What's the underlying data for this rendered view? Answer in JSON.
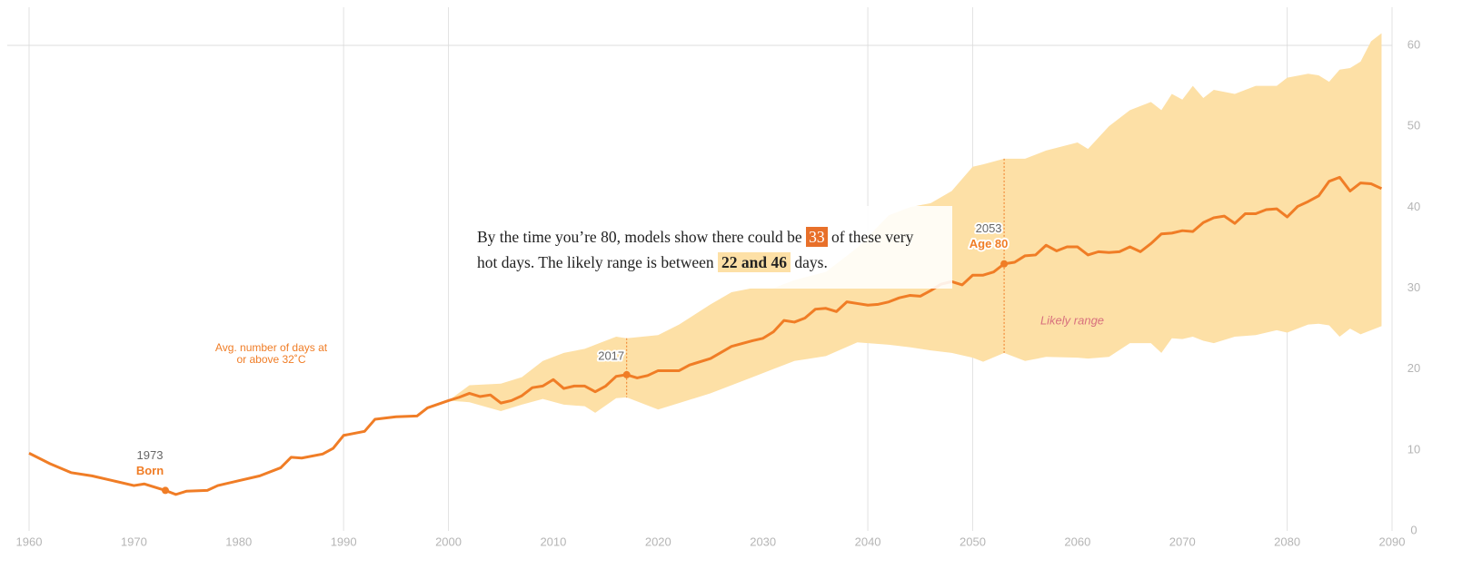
{
  "chart_data": {
    "type": "line",
    "series": [
      {
        "name": "Avg. number of days at or above 32˚C",
        "color": "#f07d26",
        "x": [
          1960,
          1962,
          1964,
          1966,
          1968,
          1970,
          1971,
          1973,
          1974,
          1975,
          1977,
          1978,
          1980,
          1982,
          1984,
          1985,
          1986,
          1988,
          1989,
          1990,
          1992,
          1993,
          1995,
          1997,
          1998,
          2000,
          2001,
          2002,
          2003,
          2004,
          2005,
          2006,
          2007,
          2008,
          2009,
          2010,
          2011,
          2012,
          2013,
          2014,
          2015,
          2016,
          2017,
          2018,
          2019,
          2020,
          2022,
          2023,
          2025,
          2027,
          2029,
          2030,
          2031,
          2032,
          2033,
          2034,
          2035,
          2036,
          2037,
          2038,
          2039,
          2040,
          2041,
          2042,
          2043,
          2044,
          2045,
          2046,
          2047,
          2048,
          2049,
          2050,
          2051,
          2052,
          2053,
          2054,
          2055,
          2056,
          2057,
          2058,
          2059,
          2060,
          2061,
          2062,
          2063,
          2064,
          2065,
          2066,
          2067,
          2068,
          2069,
          2070,
          2071,
          2072,
          2073,
          2074,
          2075,
          2076,
          2077,
          2078,
          2079,
          2080,
          2081,
          2082,
          2083,
          2084,
          2085,
          2086,
          2087,
          2088,
          2089
        ],
        "values": [
          9.6,
          8.3,
          7.2,
          6.8,
          6.2,
          5.6,
          5.8,
          5.0,
          4.5,
          4.9,
          5.0,
          5.6,
          6.2,
          6.8,
          7.8,
          9.1,
          9.0,
          9.5,
          10.2,
          11.8,
          12.3,
          13.8,
          14.1,
          14.2,
          15.2,
          16.1,
          16.5,
          17.0,
          16.6,
          16.8,
          15.8,
          16.1,
          16.7,
          17.7,
          17.9,
          18.7,
          17.6,
          17.9,
          17.9,
          17.2,
          17.9,
          19.1,
          19.3,
          18.9,
          19.2,
          19.8,
          19.8,
          20.5,
          21.3,
          22.8,
          23.5,
          23.8,
          24.6,
          26.0,
          25.8,
          26.3,
          27.4,
          27.5,
          27.1,
          28.3,
          28.1,
          27.9,
          28.0,
          28.3,
          28.8,
          29.1,
          29.0,
          29.7,
          30.5,
          30.8,
          30.4,
          31.6,
          31.6,
          32.0,
          33.0,
          33.2,
          34.0,
          34.1,
          35.3,
          34.6,
          35.1,
          35.1,
          34.1,
          34.5,
          34.4,
          34.5,
          35.1,
          34.5,
          35.5,
          36.7,
          36.8,
          37.1,
          37.0,
          38.1,
          38.7,
          38.9,
          38.0,
          39.2,
          39.2,
          39.7,
          39.8,
          38.8,
          40.1,
          40.7,
          41.4,
          43.2,
          43.7,
          42.0,
          43.0,
          42.9,
          42.3
        ]
      }
    ],
    "band": {
      "name": "Likely range",
      "color": "#fde0a6",
      "x": [
        2000,
        2002,
        2005,
        2007,
        2009,
        2011,
        2013,
        2014,
        2016,
        2017,
        2020,
        2022,
        2025,
        2027,
        2029,
        2031,
        2033,
        2036,
        2039,
        2042,
        2044,
        2046,
        2048,
        2050,
        2051,
        2053,
        2055,
        2057,
        2060,
        2061,
        2063,
        2065,
        2067,
        2068,
        2069,
        2070,
        2071,
        2072,
        2073,
        2075,
        2077,
        2079,
        2080,
        2082,
        2083,
        2084,
        2085,
        2086,
        2087,
        2088,
        2089
      ],
      "upper": [
        16.1,
        18,
        18.2,
        19,
        21,
        22,
        22.5,
        23,
        24,
        23.8,
        24.2,
        25.5,
        28,
        29.5,
        30,
        30,
        31,
        32,
        35,
        39,
        40,
        40.5,
        42,
        45,
        45.3,
        46,
        46,
        47,
        48,
        47.2,
        50,
        52,
        53,
        52,
        54,
        53.3,
        55,
        53.5,
        54.5,
        54,
        55,
        55,
        56,
        56.5,
        56.3,
        55.5,
        57,
        57.2,
        58,
        60.5,
        61.5
      ],
      "lower": [
        16.1,
        15.9,
        14.8,
        15.6,
        16.3,
        15.6,
        15.4,
        14.6,
        16.4,
        16.5,
        15.0,
        15.8,
        17,
        18,
        19,
        20,
        21,
        21.6,
        23.3,
        23,
        22.7,
        22.3,
        22,
        21.4,
        20.9,
        22,
        21,
        21.5,
        21.4,
        21.3,
        21.5,
        23.2,
        23.2,
        22,
        23.8,
        23.7,
        24,
        23.5,
        23.2,
        24,
        24.2,
        24.8,
        24.5,
        25.5,
        25.6,
        25.4,
        24,
        25,
        24.3,
        24.8,
        25.3
      ]
    },
    "markers": [
      {
        "x": 1973,
        "label": "Born"
      },
      {
        "x": 2017
      },
      {
        "x": 2053,
        "label": "Age 80"
      }
    ],
    "callout": {
      "before": "By the time you’re 80, models show there could be",
      "value": 33,
      "middle": "of these very hot days. The likely range is between",
      "range": "22 and 46",
      "after": "days."
    },
    "xlim": [
      1960,
      2090
    ],
    "xticks": [
      1960,
      1970,
      1980,
      1990,
      2000,
      2010,
      2020,
      2030,
      2040,
      2050,
      2060,
      2070,
      2080,
      2090
    ],
    "xgrid": [
      1960,
      1990,
      2000,
      2040,
      2050,
      2080,
      2090
    ],
    "ylim": [
      0,
      60
    ],
    "yticks": [
      0,
      10,
      20,
      30,
      40,
      50,
      60
    ],
    "ygrid": [
      60
    ]
  }
}
